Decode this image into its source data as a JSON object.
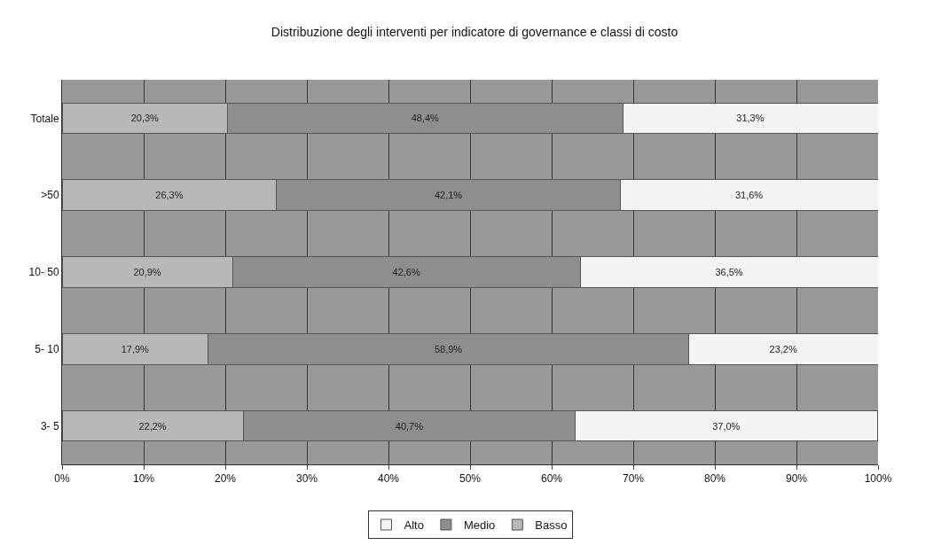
{
  "chart_data": {
    "type": "bar",
    "orientation": "horizontal",
    "stacked": true,
    "title": "Distribuzione degli interventi per indicatore di governance e classi di costo",
    "categories": [
      "Totale",
      ">50",
      "10- 50",
      "5- 10",
      "3- 5"
    ],
    "series": [
      {
        "name": "Basso",
        "color": "#b8b8b8",
        "values": [
          20.3,
          26.3,
          20.9,
          17.9,
          22.2
        ],
        "value_labels": [
          "20,3%",
          "26,3%",
          "20,9%",
          "17,9%",
          "22,2%"
        ]
      },
      {
        "name": "Medio",
        "color": "#8e8e8e",
        "values": [
          48.4,
          42.1,
          42.6,
          58.9,
          40.7
        ],
        "value_labels": [
          "48,4%",
          "42,1%",
          "42,6%",
          "58,9%",
          "40,7%"
        ]
      },
      {
        "name": "Alto",
        "color": "#f4f4f4",
        "values": [
          31.3,
          31.6,
          36.5,
          23.2,
          37.0
        ],
        "value_labels": [
          "31,3%",
          "31,6%",
          "36,5%",
          "23,2%",
          "37,0%"
        ]
      }
    ],
    "xlim": [
      0,
      100
    ],
    "xticks": [
      {
        "value": 0,
        "label": "0%"
      },
      {
        "value": 10,
        "label": "10%"
      },
      {
        "value": 20,
        "label": "20%"
      },
      {
        "value": 30,
        "label": "30%"
      },
      {
        "value": 40,
        "label": "40%"
      },
      {
        "value": 50,
        "label": "50%"
      },
      {
        "value": 60,
        "label": "60%"
      },
      {
        "value": 70,
        "label": "70%"
      },
      {
        "value": 80,
        "label": "80%"
      },
      {
        "value": 90,
        "label": "90%"
      },
      {
        "value": 100,
        "label": "100%"
      }
    ],
    "grid": true,
    "legend": "bottom"
  }
}
